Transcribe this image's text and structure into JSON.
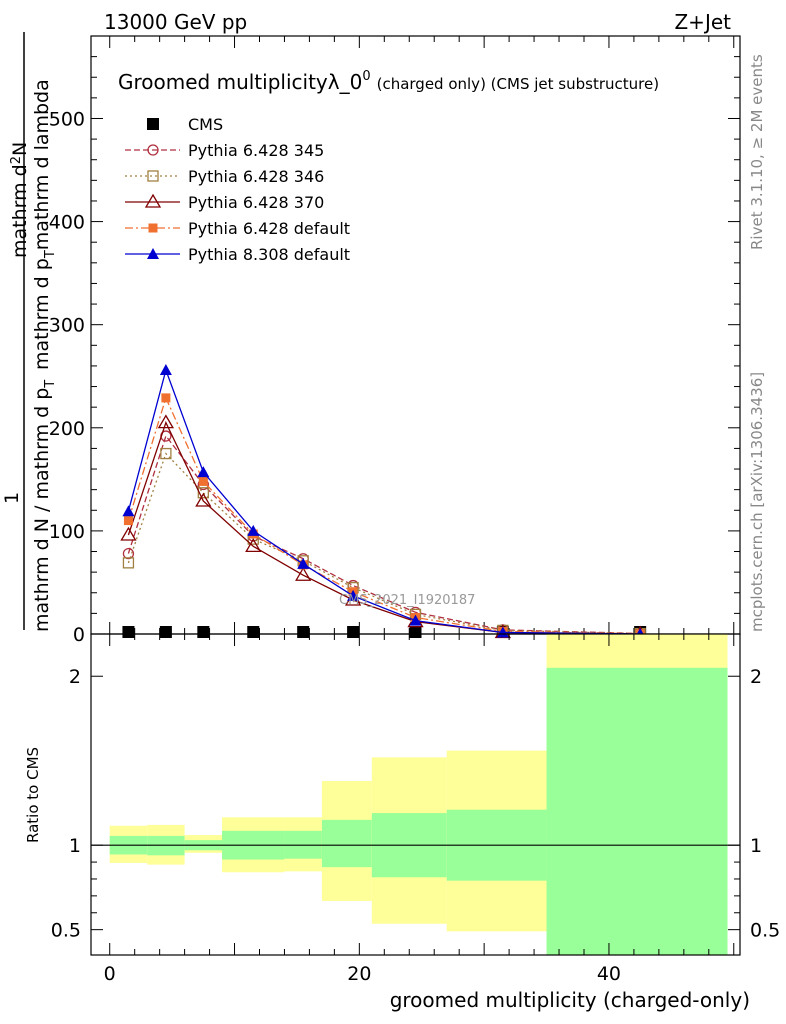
{
  "header": {
    "left": "13000 GeV pp",
    "right": "Z+Jet"
  },
  "side": {
    "top": "Rivet 3.1.10, ≥ 2M events",
    "bottom": "mcplots.cern.ch [arXiv:1306.3436]"
  },
  "watermark": "CMS_2021_I1920187",
  "chart_data": [
    {
      "type": "line",
      "title": "Groomed multiplicityλ_0",
      "title_sup": "0",
      "title_note": "(charged only) (CMS jet substructure)",
      "ylabel_num": "1",
      "ylabel_den": "mathrm d N / mathrm d p",
      "ylabel_den_sub": "T",
      "ylabel_den2": "mathrm d p",
      "ylabel_den2_sub": "T",
      "ylabel_den3": "mathrm d lambda",
      "ylabel_top": "mathrm d",
      "ylabel_top_sup": "2",
      "ylabel_top2": "N",
      "xlabel": "",
      "ylim": [
        0,
        580
      ],
      "xlim": [
        -1.5,
        50.5
      ],
      "yticks": [
        0,
        100,
        200,
        300,
        400,
        500
      ],
      "legend_position": "top-left",
      "series": [
        {
          "name": "CMS",
          "color": "#000000",
          "marker": "filled-square",
          "line": "none",
          "x": [
            1.5,
            4.5,
            7.5,
            11.5,
            15.5,
            19.5,
            24.5,
            31.5,
            42.5
          ],
          "y": [
            0,
            0,
            0,
            0,
            0,
            0,
            0,
            0,
            0
          ]
        },
        {
          "name": "Pythia 6.428 345",
          "color": "#b03040",
          "marker": "open-circle",
          "line": "dashed",
          "x": [
            1.5,
            4.5,
            7.5,
            11.5,
            15.5,
            19.5,
            24.5,
            31.5,
            42.5
          ],
          "y": [
            78,
            192,
            145,
            95,
            73,
            47,
            21,
            4,
            0.5
          ]
        },
        {
          "name": "Pythia 6.428 346",
          "color": "#a08040",
          "marker": "open-square",
          "line": "dotted",
          "x": [
            1.5,
            4.5,
            7.5,
            11.5,
            15.5,
            19.5,
            24.5,
            31.5,
            42.5
          ],
          "y": [
            69,
            175,
            137,
            92,
            71,
            45,
            19,
            3.5,
            0.4
          ]
        },
        {
          "name": "Pythia 6.428 370",
          "color": "#800000",
          "marker": "open-triangle",
          "line": "solid",
          "x": [
            1.5,
            4.5,
            7.5,
            11.5,
            15.5,
            19.5,
            24.5,
            31.5,
            42.5
          ],
          "y": [
            96,
            205,
            129,
            85,
            57,
            33,
            12,
            1.5,
            0.1
          ]
        },
        {
          "name": "Pythia 6.428 default",
          "color": "#f07030",
          "marker": "filled-square-small",
          "line": "dashdot",
          "x": [
            1.5,
            4.5,
            7.5,
            11.5,
            15.5,
            19.5,
            24.5,
            31.5,
            42.5
          ],
          "y": [
            110,
            229,
            148,
            97,
            67,
            41,
            16,
            2.5,
            0.2
          ]
        },
        {
          "name": "Pythia 8.308 default",
          "color": "#0000d0",
          "marker": "filled-triangle",
          "line": "solid",
          "x": [
            1.5,
            4.5,
            7.5,
            11.5,
            15.5,
            19.5,
            24.5,
            31.5,
            42.5
          ],
          "y": [
            119,
            256,
            157,
            100,
            68,
            37,
            13,
            1.5,
            0.1
          ]
        }
      ]
    },
    {
      "type": "area",
      "title": "",
      "xlabel": "groomed multiplicity (charged-only)",
      "ylabel": "Ratio to CMS",
      "xlim": [
        -1.5,
        50.5
      ],
      "ylim": [
        0.35,
        2.25
      ],
      "xticks": [
        0,
        20,
        40
      ],
      "yticks": [
        0.5,
        1,
        2
      ],
      "reference_line": 1,
      "bins": [
        {
          "lo": 0,
          "hi": 3,
          "stat_lo": 0.945,
          "stat_hi": 1.055,
          "tot_lo": 0.895,
          "tot_hi": 1.115
        },
        {
          "lo": 3,
          "hi": 6,
          "stat_lo": 0.94,
          "stat_hi": 1.055,
          "tot_lo": 0.885,
          "tot_hi": 1.12
        },
        {
          "lo": 6,
          "hi": 9,
          "stat_lo": 0.97,
          "stat_hi": 1.03,
          "tot_lo": 0.955,
          "tot_hi": 1.06
        },
        {
          "lo": 9,
          "hi": 14,
          "stat_lo": 0.915,
          "stat_hi": 1.085,
          "tot_lo": 0.84,
          "tot_hi": 1.165
        },
        {
          "lo": 14,
          "hi": 17,
          "stat_lo": 0.92,
          "stat_hi": 1.085,
          "tot_lo": 0.845,
          "tot_hi": 1.165
        },
        {
          "lo": 17,
          "hi": 21,
          "stat_lo": 0.87,
          "stat_hi": 1.15,
          "tot_lo": 0.67,
          "tot_hi": 1.38
        },
        {
          "lo": 21,
          "hi": 27,
          "stat_lo": 0.81,
          "stat_hi": 1.19,
          "tot_lo": 0.535,
          "tot_hi": 1.52
        },
        {
          "lo": 27,
          "hi": 35,
          "stat_lo": 0.79,
          "stat_hi": 1.21,
          "tot_lo": 0.49,
          "tot_hi": 1.56
        },
        {
          "lo": 35,
          "hi": 49.5,
          "stat_lo": 0.35,
          "stat_hi": 2.05,
          "tot_lo": 0.35,
          "tot_hi": 2.25
        }
      ],
      "colors": {
        "stat": "#99ff99",
        "tot": "#ffff99"
      }
    }
  ]
}
